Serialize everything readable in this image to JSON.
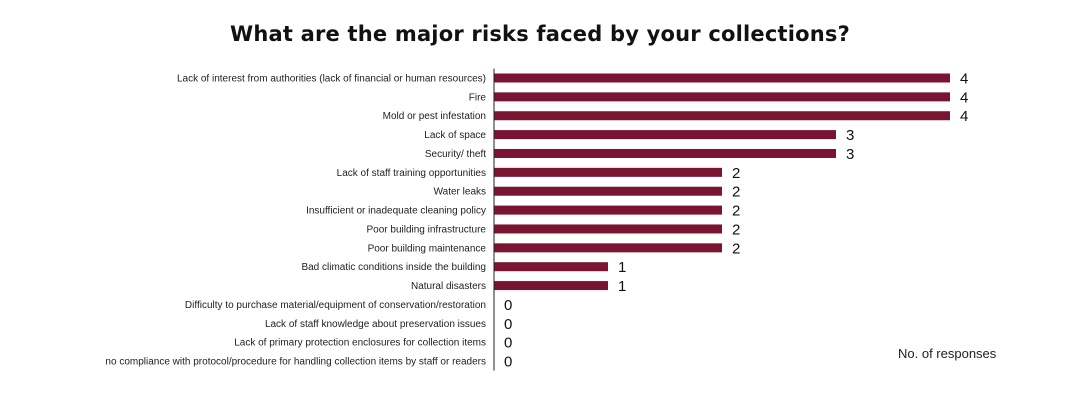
{
  "chart_data": {
    "type": "bar",
    "orientation": "horizontal",
    "title": "What are the major risks faced by your collections?",
    "xlabel": "No. of responses",
    "ylabel": "",
    "xlim": [
      0,
      4
    ],
    "grid": false,
    "legend": "none",
    "bar_color": "#7a1433",
    "categories": [
      "Lack of interest from authorities (lack of financial or human resources)",
      "Fire",
      "Mold or pest infestation",
      "Lack of space",
      "Security/ theft",
      "Lack of staff training opportunities",
      "Water leaks",
      "Insufficient or inadequate cleaning policy",
      "Poor building infrastructure",
      "Poor building maintenance",
      "Bad climatic conditions inside the building",
      "Natural disasters",
      "Difficulty to purchase material/equipment of conservation/restoration",
      "Lack of staff knowledge about preservation issues",
      "Lack of primary protection enclosures for collection items",
      "no compliance with protocol/procedure for handling collection items by staff or readers"
    ],
    "values": [
      4,
      4,
      4,
      3,
      3,
      2,
      2,
      2,
      2,
      2,
      1,
      1,
      0,
      0,
      0,
      0
    ]
  }
}
